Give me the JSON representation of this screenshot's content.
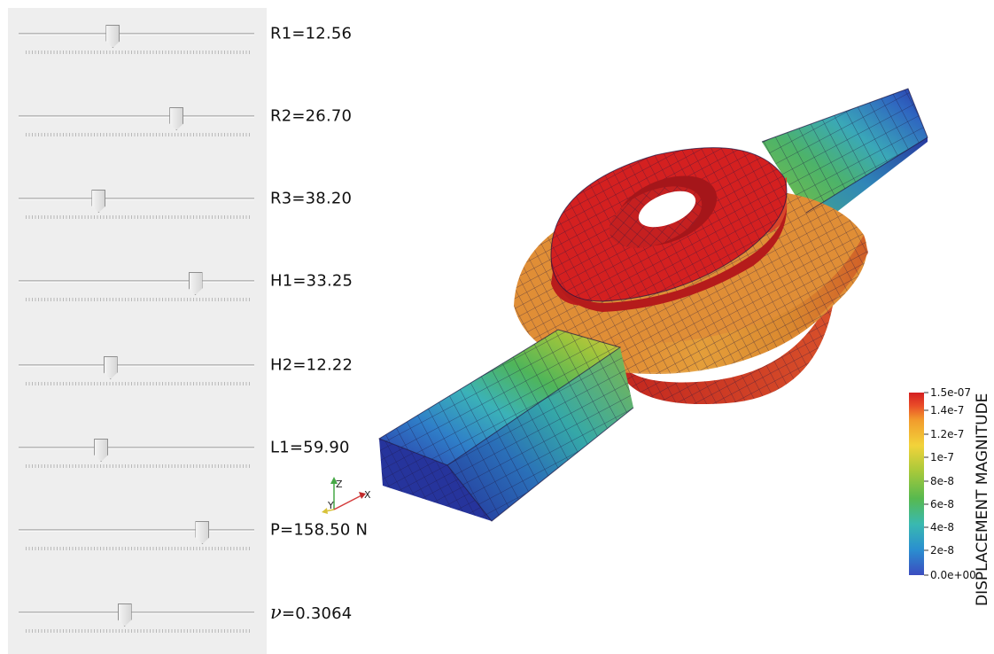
{
  "sliders": [
    {
      "label": "R1=12.56",
      "value": 0.4
    },
    {
      "label": "R2=26.70",
      "value": 0.67
    },
    {
      "label": "R3=38.20",
      "value": 0.34
    },
    {
      "label": "H1=33.25",
      "value": 0.75
    },
    {
      "label": "H2=12.22",
      "value": 0.39
    },
    {
      "label": "L1=59.90",
      "value": 0.35
    },
    {
      "label": "P=158.50 N",
      "value": 0.78
    },
    {
      "label": "=0.3064",
      "symbol": "ν",
      "value": 0.45
    }
  ],
  "colorbar": {
    "title": "DISPLACEMENT MAGNITUDE",
    "ticks": [
      "1.5e-07",
      "1.4e-7",
      "1.2e-7",
      "1e-7",
      "8e-8",
      "6e-8",
      "4e-8",
      "2e-8",
      "0.0e+00"
    ],
    "range": [
      0,
      1.5e-07
    ],
    "colormap": [
      "#3b4cc0",
      "#2a8fd0",
      "#39b9b0",
      "#57b94f",
      "#a8c93a",
      "#f2d33a",
      "#f29b2c",
      "#e94b28",
      "#d42020"
    ]
  },
  "axes_widget": {
    "x": "X",
    "y": "Y",
    "z": "Z"
  },
  "colors": {
    "panel": "#eeeeee",
    "high": "#d42020",
    "low": "#2b3aa8"
  }
}
